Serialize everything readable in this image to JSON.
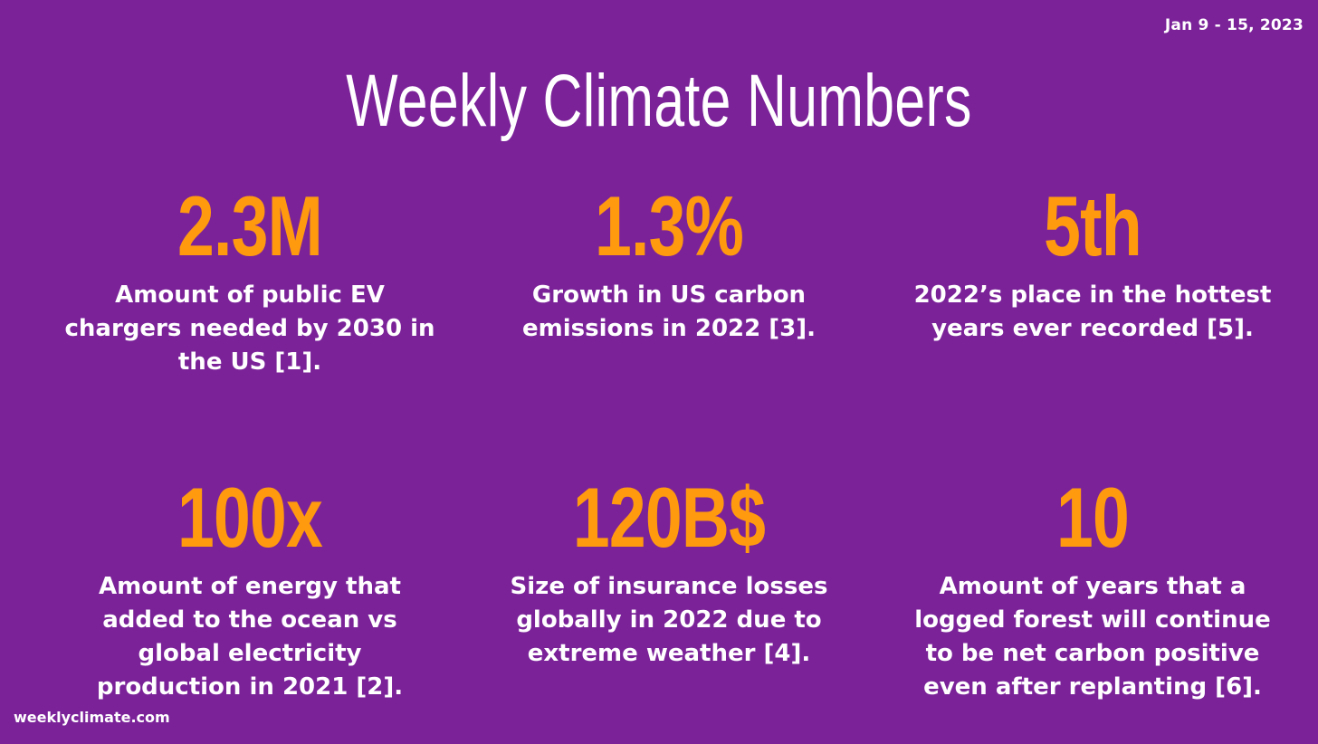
{
  "date_range": "Jan 9 - 15, 2023",
  "title": "Weekly Climate Numbers",
  "stats": [
    {
      "value": "2.3M",
      "description": "Amount of public EV chargers needed by 2030 in the US [1]."
    },
    {
      "value": "1.3%",
      "description": "Growth in US carbon emissions in 2022 [3]."
    },
    {
      "value": "5th",
      "description": "2022’s place in the hottest years ever recorded [5]."
    },
    {
      "value": "100x",
      "description": "Amount of energy that added to the ocean vs global electricity production in 2021 [2]."
    },
    {
      "value": "120B$",
      "description": "Size of insurance losses globally in 2022 due to extreme weather [4]."
    },
    {
      "value": "10",
      "description": "Amount of years that a logged forest will continue to be net carbon positive even after replanting [6]."
    }
  ],
  "footer": "weeklyclimate.com",
  "colors": {
    "background": "#7B2299",
    "accent": "#FF9A0F",
    "text": "#FFFFFF"
  }
}
